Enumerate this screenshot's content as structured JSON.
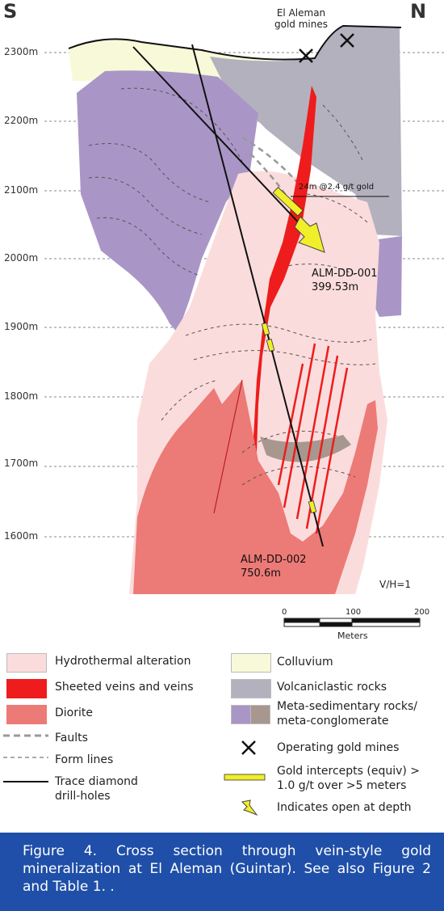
{
  "directions": {
    "south": "S",
    "north": "N"
  },
  "elevation_labels": [
    "2300m",
    "2200m",
    "2100m",
    "2000m",
    "1900m",
    "1800m",
    "1700m",
    "1600m"
  ],
  "mines_label": "El Aleman gold mines",
  "intercept_label": "24m @2.4 g/t gold",
  "holes": [
    {
      "name": "ALM-DD-001",
      "depth": "399.53m"
    },
    {
      "name": "ALM-DD-002",
      "depth": "750.6m"
    }
  ],
  "ratio_label": "V/H=1",
  "scale": {
    "ticks": [
      "0",
      "100",
      "200"
    ],
    "unit": "Meters"
  },
  "legend": {
    "hydrothermal": "Hydrothermal alteration",
    "veins": "Sheeted veins and veins",
    "diorite": "Diorite",
    "faults": "Faults",
    "form_lines": "Form lines",
    "drill_holes": "Trace diamond drill-holes",
    "colluvium": "Colluvium",
    "volcaniclastic": "Volcaniclastic rocks",
    "metased": "Meta-sedimentary rocks/ meta-conglomerate",
    "mines": "Operating gold mines",
    "intercepts": "Gold intercepts (equiv) > 1.0 g/t over >5 meters",
    "open": "Indicates open at depth"
  },
  "colors": {
    "hydrothermal": "#fbdcdc",
    "veins": "#ee1c1c",
    "diorite": "#ec7a76",
    "colluvium": "#f7f9d8",
    "volcaniclastic": "#b4b1be",
    "metased_purple": "#a996c6",
    "metased_brown": "#a7978f",
    "intercept": "#f1ee2a",
    "caption_bg": "#1f4fa8"
  },
  "caption": "Figure 4. Cross section through vein-style gold mineralization at El Aleman (Guintar). See also Figure 2 and Table 1. ."
}
